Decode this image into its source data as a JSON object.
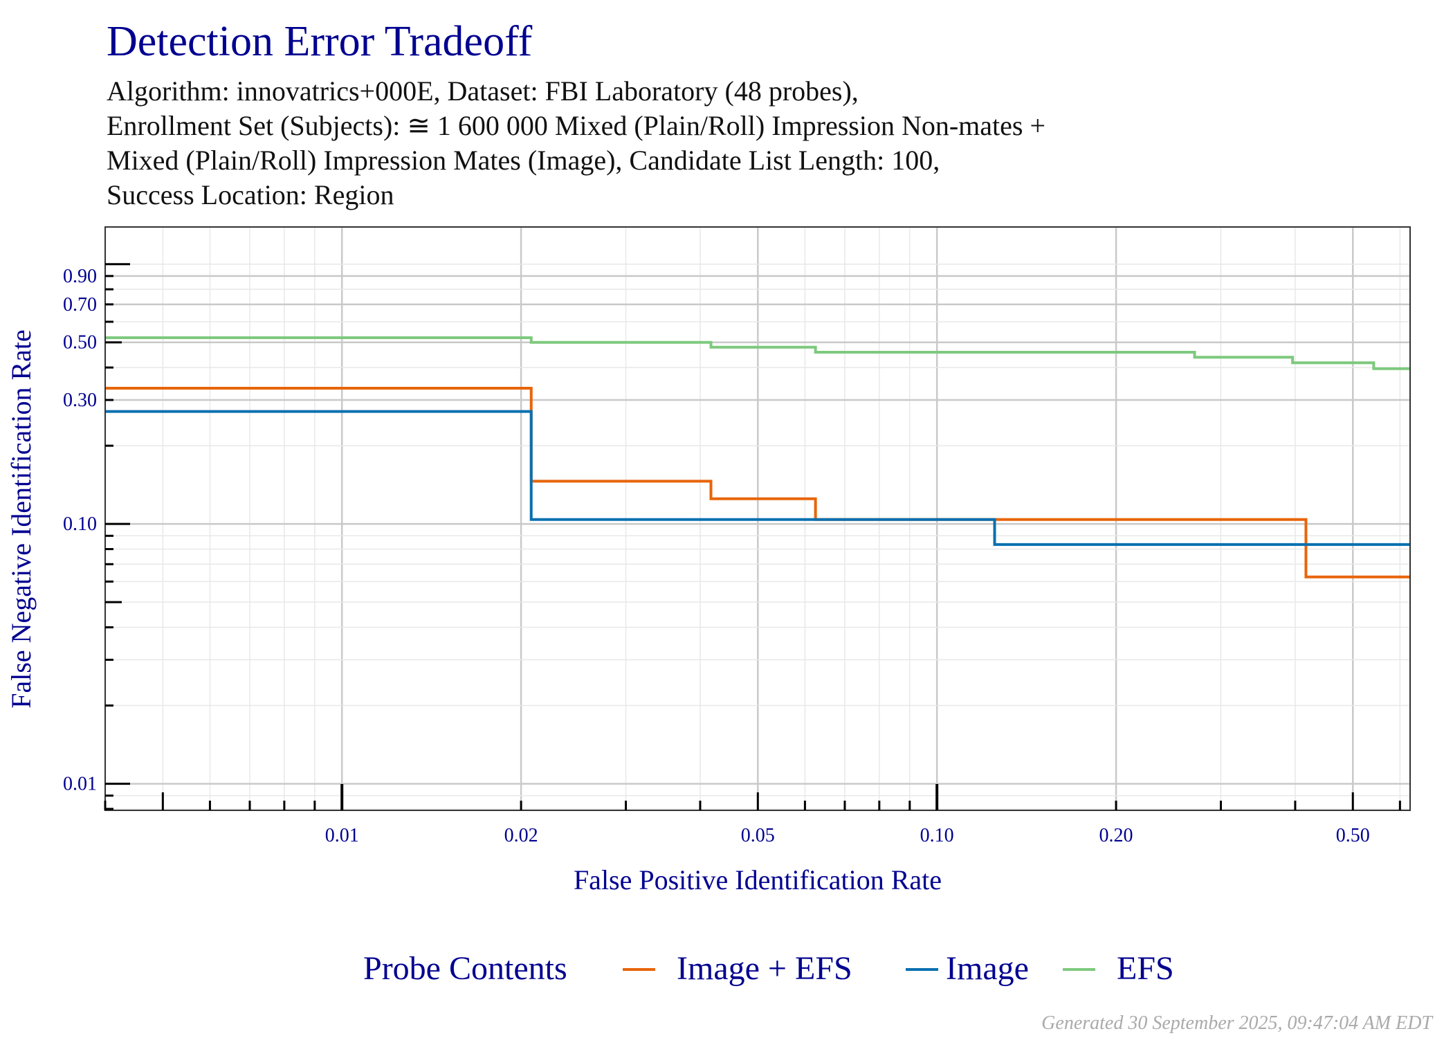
{
  "chart_data": {
    "type": "line",
    "step": true,
    "title": "Detection Error Tradeoff",
    "subtitle_lines": [
      "Algorithm: innovatrics+000E, Dataset: FBI Laboratory (48 probes),",
      "Enrollment Set (Subjects): ≅ 1 600 000 Mixed (Plain/Roll) Impression Non-mates +",
      "Mixed (Plain/Roll) Impression Mates (Image), Candidate List Length: 100,",
      "Success Location: Region"
    ],
    "xlabel": "False Positive Identification Rate",
    "ylabel": "False Negative Identification Rate",
    "xscale": "log",
    "yscale": "log",
    "xlim": [
      0.004,
      0.624
    ],
    "ylim": [
      0.0079,
      1.39
    ],
    "xticks": [
      0.01,
      0.02,
      0.05,
      0.1,
      0.2,
      0.5
    ],
    "xtick_labels": [
      "0.01",
      "0.02",
      "0.05",
      "0.10",
      "0.20",
      "0.50"
    ],
    "yticks": [
      0.01,
      0.1,
      0.3,
      0.5,
      0.7,
      0.9
    ],
    "ytick_labels": [
      "0.01",
      "0.10",
      "0.30",
      "0.50",
      "0.70",
      "0.90"
    ],
    "grid": true,
    "legend": {
      "title": "Probe Contents",
      "placement": "bottom"
    },
    "series": [
      {
        "name": "Image + EFS",
        "color": "#e8650a",
        "step_x": [
          0.0208,
          0.0417,
          0.0625,
          0.417
        ],
        "y": [
          0.333,
          0.146,
          0.125,
          0.104,
          0.0625
        ]
      },
      {
        "name": "Image",
        "color": "#0a70b0",
        "step_x": [
          0.0208,
          0.125
        ],
        "y": [
          0.271,
          0.104,
          0.0833
        ]
      },
      {
        "name": "EFS",
        "color": "#7ec97e",
        "step_x": [
          0.0208,
          0.0417,
          0.0625,
          0.271,
          0.396,
          0.542
        ],
        "y": [
          0.521,
          0.5,
          0.479,
          0.458,
          0.438,
          0.417,
          0.396
        ]
      }
    ]
  },
  "footer": "Generated 30 September 2025, 09:47:04 AM EDT"
}
